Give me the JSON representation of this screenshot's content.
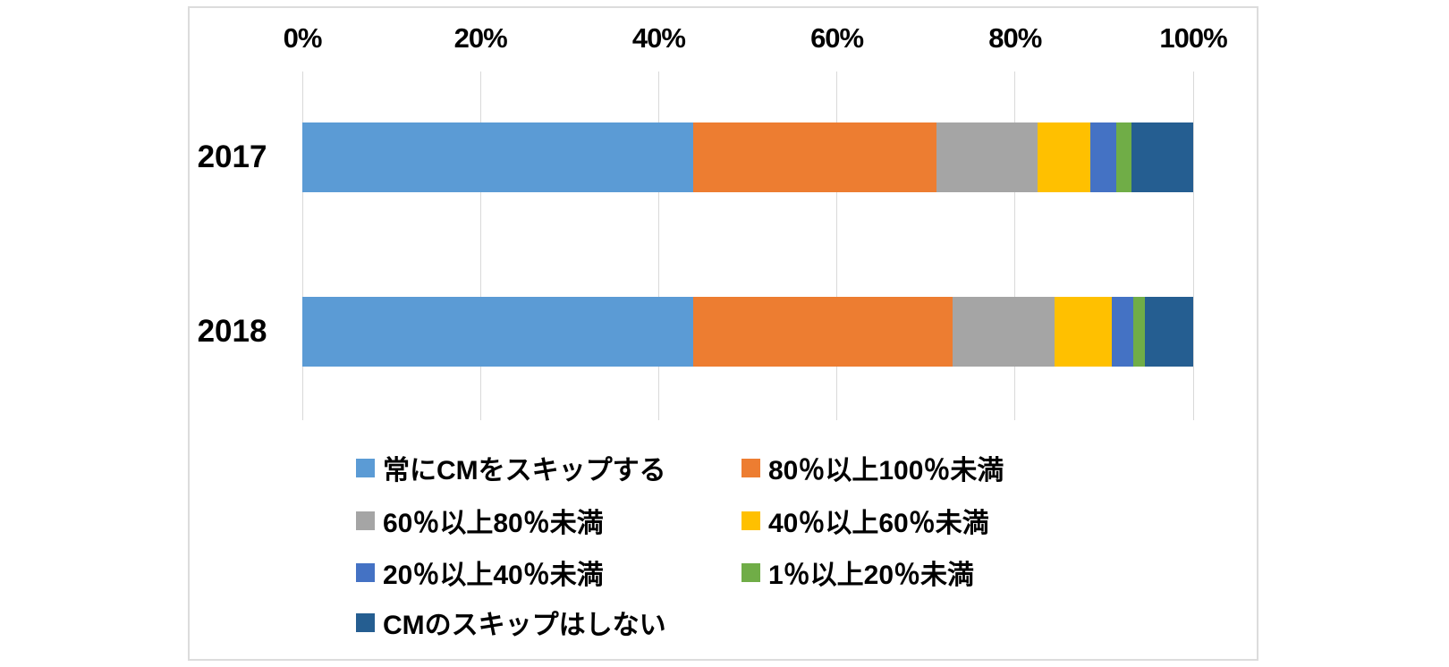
{
  "chart_data": {
    "type": "bar",
    "orientation": "horizontal",
    "stacked": true,
    "title": "",
    "xlabel": "",
    "ylabel": "",
    "axis_position": "top",
    "xlim": [
      0,
      100
    ],
    "grid": true,
    "categories": [
      "2017",
      "2018"
    ],
    "series": [
      {
        "name": "常にCMをスキップする",
        "color": "#5B9BD5",
        "values": [
          43.9,
          43.9
        ]
      },
      {
        "name": "80％以上100％未満",
        "color": "#ED7D31",
        "values": [
          27.3,
          29.1
        ]
      },
      {
        "name": "60％以上80％未満",
        "color": "#A5A5A5",
        "values": [
          11.3,
          11.4
        ]
      },
      {
        "name": "40％以上60％未満",
        "color": "#FFC000",
        "values": [
          6.0,
          6.5
        ]
      },
      {
        "name": "20％以上40％未満",
        "color": "#4472C4",
        "values": [
          2.9,
          2.4
        ]
      },
      {
        "name": "1％以上20％未満",
        "color": "#70AD47",
        "values": [
          1.7,
          1.3
        ]
      },
      {
        "name": "CMのスキップはしない",
        "color": "#255E91",
        "values": [
          6.9,
          5.4
        ]
      }
    ],
    "x_ticks": [
      {
        "value": 0,
        "label": "0%"
      },
      {
        "value": 20,
        "label": "20%"
      },
      {
        "value": 40,
        "label": "40%"
      },
      {
        "value": 60,
        "label": "60%"
      },
      {
        "value": 80,
        "label": "80%"
      },
      {
        "value": 100,
        "label": "100%"
      }
    ],
    "legend": {
      "position": "bottom",
      "columns": 2
    }
  },
  "frame": {
    "border_color": "#dcdcdc",
    "gridline_color": "#d9d9d9"
  }
}
